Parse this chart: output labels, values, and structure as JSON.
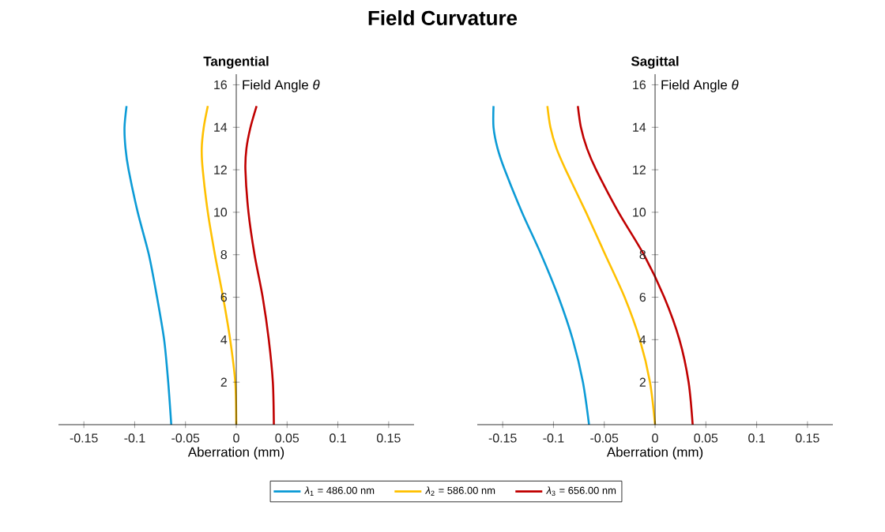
{
  "chart_data": [
    {
      "type": "line",
      "title": "Field Curvature",
      "subtitle": "Tangential",
      "xlabel": "Aberration (mm)",
      "ylabel": "Field  Angle  *θ*",
      "xlim": [
        -0.175,
        0.175
      ],
      "ylim": [
        0,
        16.5
      ],
      "xticks": [
        -0.15,
        -0.1,
        -0.05,
        0,
        0.05,
        0.1,
        0.15
      ],
      "yticks": [
        2,
        4,
        6,
        8,
        10,
        12,
        14,
        16
      ],
      "legend": "bottom",
      "series": [
        {
          "name": "*λ*$_{1}$  =  486.00  nm",
          "color": "#0c9bd6",
          "x": [
            -0.064,
            -0.067,
            -0.071,
            -0.078,
            -0.086,
            -0.097,
            -0.106,
            -0.109,
            -0.11,
            -0.108
          ],
          "values": [
            0,
            2,
            4,
            6,
            8,
            10,
            12,
            13,
            14,
            15
          ]
        },
        {
          "name": "*λ*$_{2}$  =  586.00  nm",
          "color": "#ffc000",
          "x": [
            0,
            -0.001,
            -0.006,
            -0.013,
            -0.021,
            -0.028,
            -0.033,
            -0.034,
            -0.032,
            -0.028
          ],
          "values": [
            0,
            2,
            4,
            6,
            8,
            10,
            12,
            13,
            14,
            15
          ]
        },
        {
          "name": "*λ*$_{3}$  =  656.00  nm",
          "color": "#c00000",
          "x": [
            0.037,
            0.036,
            0.032,
            0.026,
            0.018,
            0.012,
            0.009,
            0.01,
            0.014,
            0.02
          ],
          "values": [
            0,
            2,
            4,
            6,
            8,
            10,
            12,
            13,
            14,
            15
          ]
        }
      ]
    },
    {
      "type": "line",
      "subtitle": "Sagittal",
      "xlabel": "Aberration (mm)",
      "ylabel": "Field  Angle  *θ*",
      "xlim": [
        -0.175,
        0.175
      ],
      "ylim": [
        0,
        16.5
      ],
      "xticks": [
        -0.15,
        -0.1,
        -0.05,
        0,
        0.05,
        0.1,
        0.15
      ],
      "yticks": [
        2,
        4,
        6,
        8,
        10,
        12,
        14,
        16
      ],
      "series": [
        {
          "color": "#0c9bd6",
          "x": [
            -0.065,
            -0.071,
            -0.081,
            -0.095,
            -0.112,
            -0.131,
            -0.148,
            -0.155,
            -0.159,
            -0.159
          ],
          "values": [
            0,
            2,
            4,
            6,
            8,
            10,
            12,
            13,
            14,
            15
          ]
        },
        {
          "color": "#ffc000",
          "x": [
            0,
            -0.005,
            -0.015,
            -0.03,
            -0.049,
            -0.068,
            -0.088,
            -0.097,
            -0.103,
            -0.106
          ],
          "values": [
            0,
            2,
            4,
            6,
            8,
            10,
            12,
            13,
            14,
            15
          ]
        },
        {
          "color": "#c00000",
          "x": [
            0.037,
            0.033,
            0.024,
            0.009,
            -0.011,
            -0.036,
            -0.058,
            -0.067,
            -0.073,
            -0.076
          ],
          "values": [
            0,
            2,
            4,
            6,
            8,
            10,
            12,
            13,
            14,
            15
          ]
        }
      ]
    }
  ]
}
